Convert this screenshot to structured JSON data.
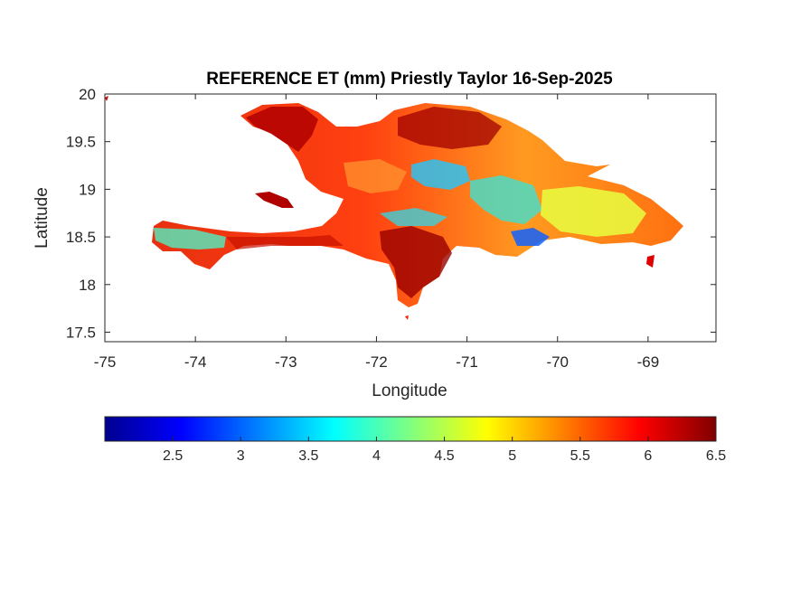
{
  "title": "REFERENCE ET (mm) Priestly Taylor 16-Sep-2025",
  "x_axis": {
    "label": "Longitude",
    "range": [
      -75,
      -68.25
    ],
    "ticks": [
      -75,
      -74,
      -73,
      -72,
      -71,
      -70,
      -69
    ],
    "tick_labels": [
      "-75",
      "-74",
      "-73",
      "-72",
      "-71",
      "-70",
      "-69"
    ]
  },
  "y_axis": {
    "label": "Latitude",
    "range": [
      17.4,
      20
    ],
    "ticks": [
      17.5,
      18,
      18.5,
      19,
      19.5,
      20
    ],
    "tick_labels": [
      "17.5",
      "18",
      "18.5",
      "19",
      "19.5",
      "20"
    ]
  },
  "colorbar": {
    "colormap": "jet",
    "range": [
      2,
      6.5
    ],
    "orientation": "horizontal",
    "ticks": [
      2.5,
      3,
      3.5,
      4,
      4.5,
      5,
      5.5,
      6,
      6.5
    ],
    "tick_labels": [
      "2.5",
      "3",
      "3.5",
      "4",
      "4.5",
      "5",
      "5.5",
      "6",
      "6.5"
    ],
    "stops": [
      "#00008f",
      "#0000ff",
      "#0080ff",
      "#00ffff",
      "#80ff80",
      "#ffff00",
      "#ff8000",
      "#ff0000",
      "#800000"
    ]
  },
  "map": {
    "region": "Hispaniola",
    "variable": "Reference evapotranspiration (mm)",
    "land_fill_regions": [
      {
        "name": "north-haiti-high",
        "value": 6.2
      },
      {
        "name": "dominican-north-coast",
        "value": 6.0
      },
      {
        "name": "cibao-valley",
        "value": 3.6
      },
      {
        "name": "cordillera-central",
        "value": 3.9
      },
      {
        "name": "eastern-plains",
        "value": 4.7
      },
      {
        "name": "southwest-peninsula",
        "value": 5.6
      },
      {
        "name": "tiburon-peninsula-west",
        "value": 4.0
      },
      {
        "name": "barahona-south",
        "value": 6.3
      },
      {
        "name": "santo-domingo-south",
        "value": 2.6
      }
    ]
  }
}
